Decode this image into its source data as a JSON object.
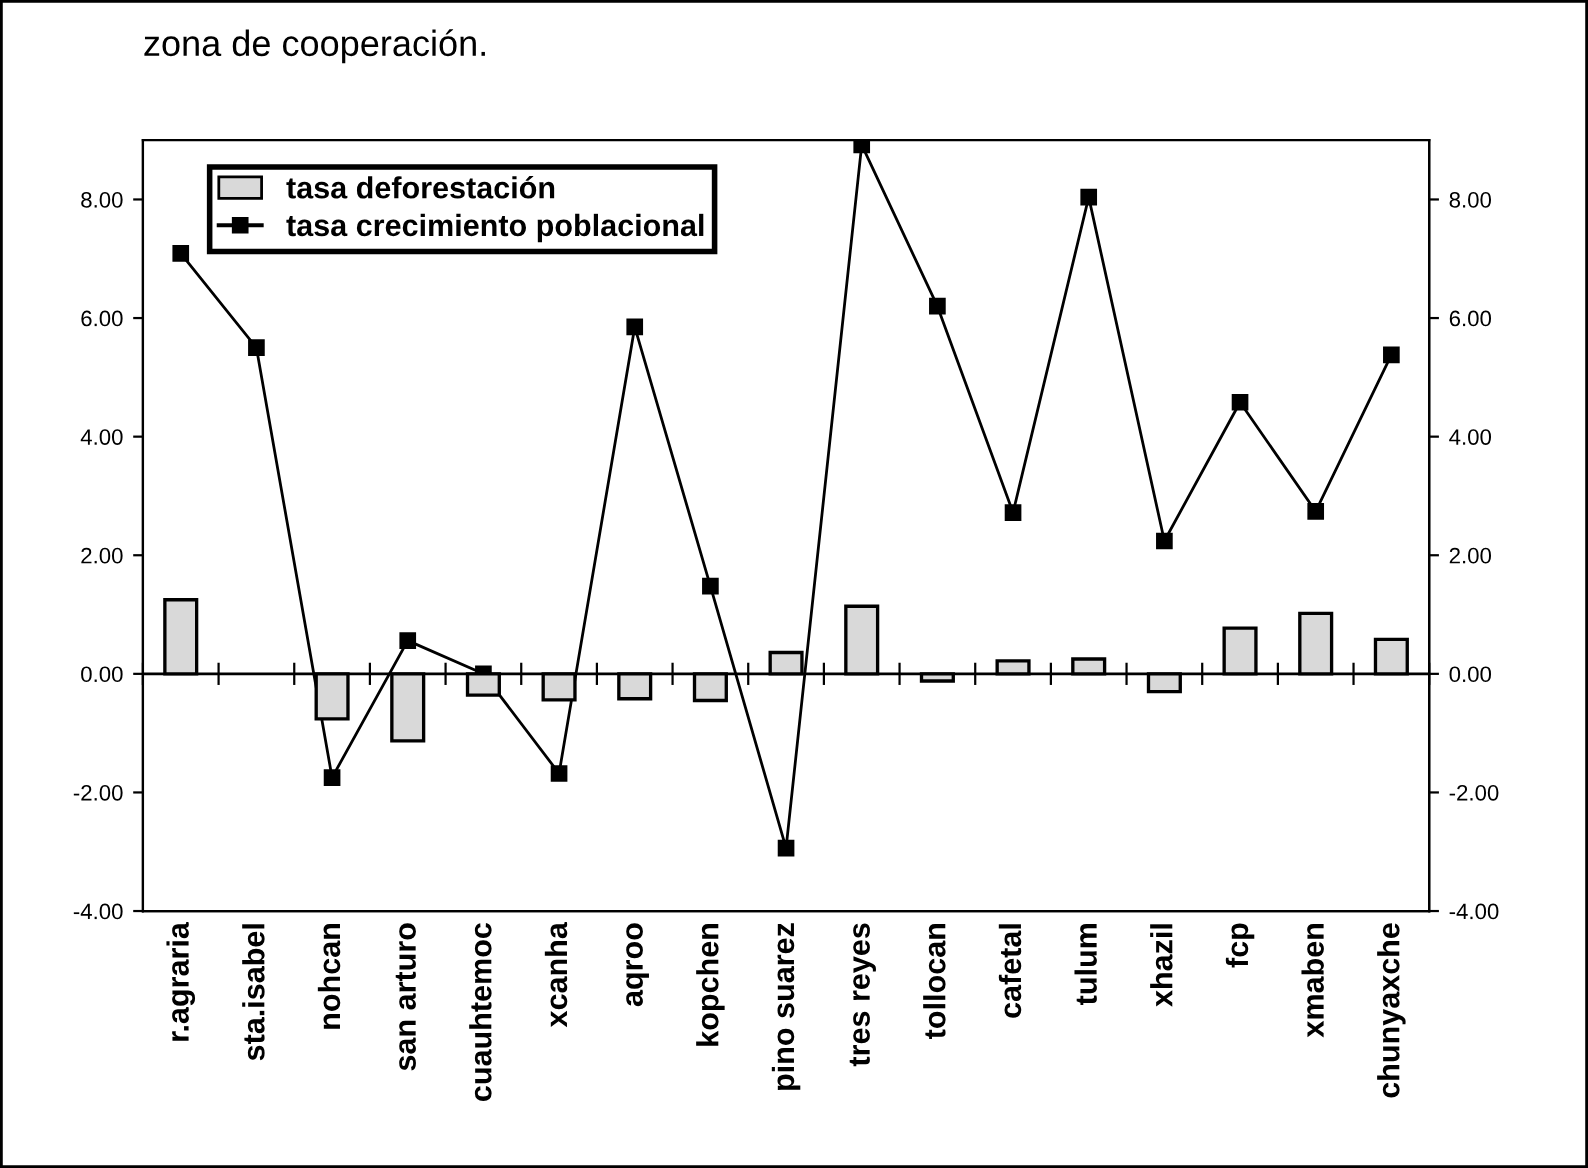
{
  "chart_data": {
    "type": "bar",
    "annotations": [
      "zona de cooperación."
    ],
    "categories": [
      "r.agraria",
      "sta.isabel",
      "nohcan",
      "san arturo",
      "cuauhtemoc",
      "xcanha",
      "aqroo",
      "kopchen",
      "pino suarez",
      "tres reyes",
      "tollocan",
      "cafetal",
      "tulum",
      "xhazil",
      "fcp",
      "xmaben",
      "chunyaxche"
    ],
    "series": [
      {
        "name": "tasa deforestación",
        "color": "#d9d9d9",
        "values": [
          1.25,
          null,
          -0.76,
          -1.13,
          -0.36,
          -0.44,
          -0.42,
          -0.45,
          0.36,
          1.14,
          -0.12,
          0.22,
          0.25,
          -0.3,
          0.77,
          1.02,
          0.58
        ]
      },
      {
        "name": "tasa crecimiento poblacional",
        "type": "line",
        "axis": "y2",
        "color": "#000000",
        "marker": "square",
        "values": [
          7.09,
          5.5,
          -1.75,
          0.56,
          0.0,
          -1.68,
          5.85,
          1.48,
          -2.94,
          8.92,
          6.2,
          2.72,
          8.04,
          2.24,
          4.58,
          2.74,
          5.38
        ]
      }
    ],
    "ylim": [
      -4,
      9
    ],
    "yticks": [
      {
        "value": -4,
        "label": "-4.00"
      },
      {
        "value": -2,
        "label": "-2.00"
      },
      {
        "value": 0,
        "label": "0.00"
      },
      {
        "value": 2,
        "label": "2.00"
      },
      {
        "value": 4,
        "label": "4.00"
      },
      {
        "value": 6,
        "label": "6.00"
      },
      {
        "value": 8,
        "label": "8.00"
      }
    ],
    "y2lim": [
      -4,
      9
    ],
    "y2ticks": [
      {
        "value": -4,
        "label": "-4.00"
      },
      {
        "value": -2,
        "label": "-2.00"
      },
      {
        "value": 0,
        "label": "0.00"
      },
      {
        "value": 2,
        "label": "2.00"
      },
      {
        "value": 4,
        "label": "4.00"
      },
      {
        "value": 6,
        "label": "6.00"
      },
      {
        "value": 8,
        "label": "8.00"
      }
    ],
    "ref_lines": [
      {
        "axis": "y",
        "value": 0,
        "color": "#000000",
        "line_style": "solid"
      }
    ],
    "legend": "top left"
  }
}
